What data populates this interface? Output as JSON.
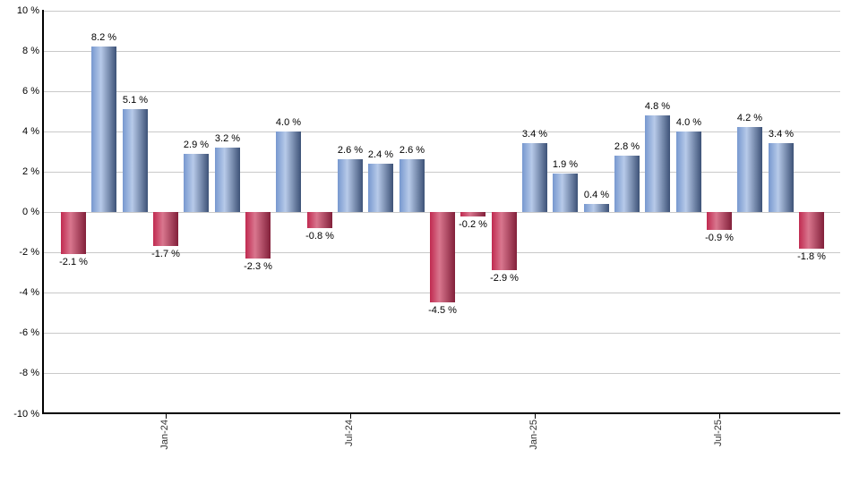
{
  "chart_data": {
    "type": "bar",
    "values": [
      -2.1,
      8.2,
      5.1,
      -1.7,
      2.9,
      3.2,
      -2.3,
      4.0,
      -0.8,
      2.6,
      2.4,
      2.6,
      -4.5,
      -0.2,
      -2.9,
      3.4,
      1.9,
      0.4,
      2.8,
      4.8,
      4.0,
      -0.9,
      4.2,
      3.4,
      -1.8
    ],
    "value_labels": [
      "-2.1 %",
      "8.2 %",
      "5.1 %",
      "-1.7 %",
      "2.9 %",
      "3.2 %",
      "-2.3 %",
      "4.0 %",
      "-0.8 %",
      "2.6 %",
      "2.4 %",
      "2.6 %",
      "-4.5 %",
      "-0.2 %",
      "-2.9 %",
      "3.4 %",
      "1.9 %",
      "0.4 %",
      "2.8 %",
      "4.8 %",
      "4.0 %",
      "-0.9 %",
      "4.2 %",
      "3.4 %",
      "-1.8 %"
    ],
    "title": "",
    "xlabel": "",
    "ylabel": "",
    "ylim": [
      -10,
      10
    ],
    "grid": true,
    "legend": "none",
    "y_axis": {
      "tick_labels": [
        "10 %",
        "8 %",
        "6 %",
        "4 %",
        "2 %",
        "0 %",
        "-2 %",
        "-4 %",
        "-6 %",
        "-8 %",
        "-10 %"
      ],
      "tick_values": [
        10,
        8,
        6,
        4,
        2,
        0,
        -2,
        -4,
        -6,
        -8,
        -10
      ]
    },
    "x_axis": {
      "tick_labels": [
        "Jan-24",
        "Jul-24",
        "Jan-25",
        "Jul-25"
      ],
      "tick_bar_indices": [
        3,
        9,
        15,
        21
      ]
    },
    "colors": {
      "positive_gradient": [
        "#7798cf",
        "#b7cae9",
        "#3d5277"
      ],
      "negative_gradient": [
        "#c02a50",
        "#d9768e",
        "#82203a"
      ],
      "gridline": "#c9c9c9",
      "axis": "#000000",
      "value_label": "#000000",
      "x_tick_label": "#333333"
    }
  }
}
